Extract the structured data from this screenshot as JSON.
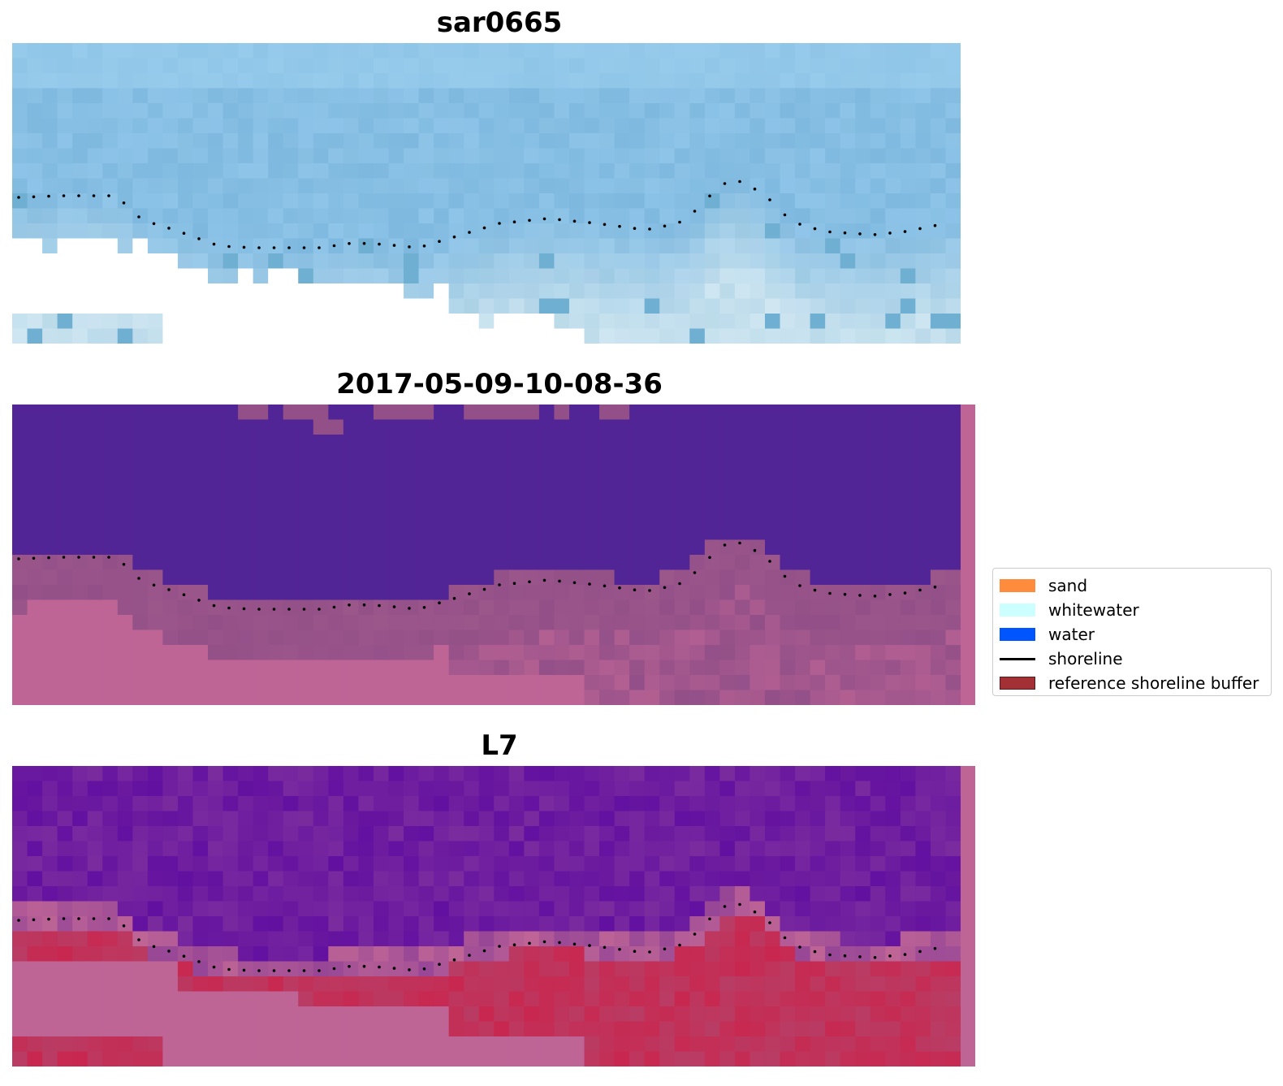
{
  "panels": [
    {
      "title": "sar0665",
      "kind": "rgb"
    },
    {
      "title": "2017-05-09-10-08-36",
      "kind": "classification"
    },
    {
      "title": "L7",
      "kind": "index"
    }
  ],
  "legend": {
    "items": [
      {
        "label": "sand",
        "color": "#ff8c3c",
        "type": "patch"
      },
      {
        "label": "whitewater",
        "color": "#ccffff",
        "type": "patch"
      },
      {
        "label": "water",
        "color": "#0055ff",
        "type": "patch"
      },
      {
        "label": "shoreline",
        "color": "#000000",
        "type": "line"
      },
      {
        "label": "reference shoreline buffer",
        "color": "#a23034",
        "type": "patch"
      }
    ]
  },
  "colors": {
    "sar_sky": "#8ec4e8",
    "sar_light": "#d5e7ef",
    "class_water": "#522596",
    "class_land": "#bf6596",
    "class_edge": "#935088",
    "index_water": "#6a1a9e",
    "index_land": "#bf6596",
    "index_red": "#c8284e",
    "shoreline": "#000000"
  }
}
